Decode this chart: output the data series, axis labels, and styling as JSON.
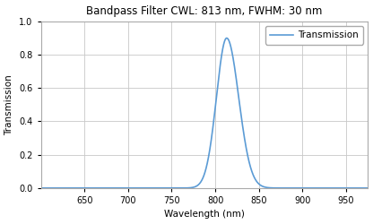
{
  "title": "Bandpass Filter CWL: 813 nm, FWHM: 30 nm",
  "xlabel": "Wavelength (nm)",
  "ylabel": "Transmission",
  "legend_label": "Transmission",
  "cwl": 813,
  "fwhm": 30,
  "peak_transmission": 0.9,
  "x_min": 600,
  "x_max": 975,
  "x_ticks": [
    650,
    700,
    750,
    800,
    850,
    900,
    950
  ],
  "y_min": 0.0,
  "y_max": 1.0,
  "y_ticks": [
    0.0,
    0.2,
    0.4,
    0.6,
    0.8,
    1.0
  ],
  "line_color": "#5b9bd5",
  "line_width": 1.2,
  "grid_color": "#c8c8c8",
  "background_color": "#ffffff",
  "title_fontsize": 8.5,
  "axis_label_fontsize": 7.5,
  "tick_fontsize": 7,
  "legend_fontsize": 7.5
}
